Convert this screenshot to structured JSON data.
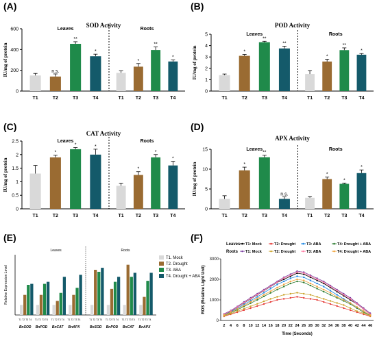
{
  "figure": {
    "colors": {
      "T1": "#d9d9d9",
      "T2": "#9a6b32",
      "T3": "#1f8a4a",
      "T4": "#145a6a"
    },
    "panels_text": {
      "leaves": "Leaves",
      "roots": "Roots"
    }
  },
  "chart_data": [
    {
      "panel": "(A)",
      "title": "SOD Activity",
      "type": "bar",
      "ylabel": "IU/mg of protein",
      "ylim": [
        0,
        600
      ],
      "yticks": [
        0,
        200,
        400,
        600
      ],
      "groups": [
        "Leaves",
        "Roots"
      ],
      "categories": [
        "T1",
        "T2",
        "T3",
        "T4"
      ],
      "series": [
        {
          "name": "Leaves",
          "values": [
            150,
            140,
            455,
            335
          ],
          "errors": [
            20,
            25,
            20,
            20
          ],
          "labels": [
            "",
            "n.s.",
            "**",
            "*"
          ]
        },
        {
          "name": "Roots",
          "values": [
            175,
            235,
            395,
            285
          ],
          "errors": [
            20,
            30,
            30,
            15
          ],
          "labels": [
            "",
            "*",
            "**",
            "*"
          ]
        }
      ]
    },
    {
      "panel": "(B)",
      "title": "POD Activity",
      "type": "bar",
      "ylabel": "IU/mg of protein",
      "ylim": [
        0,
        5
      ],
      "yticks": [
        0,
        1,
        2,
        3,
        4,
        5
      ],
      "groups": [
        "Leaves",
        "Roots"
      ],
      "categories": [
        "T1",
        "T2",
        "T3",
        "T4"
      ],
      "series": [
        {
          "name": "Leaves",
          "values": [
            1.4,
            3.1,
            4.3,
            3.75
          ],
          "errors": [
            0.1,
            0.12,
            0.08,
            0.2
          ],
          "labels": [
            "",
            "*",
            "**",
            "**"
          ]
        },
        {
          "name": "Roots",
          "values": [
            1.5,
            2.6,
            3.6,
            3.2
          ],
          "errors": [
            0.3,
            0.2,
            0.2,
            0.1
          ],
          "labels": [
            "",
            "*",
            "**",
            "*"
          ]
        }
      ]
    },
    {
      "panel": "(C)",
      "title": "CAT Activity",
      "type": "bar",
      "ylabel": "IU/mg of protein",
      "ylim": [
        0,
        2.5
      ],
      "yticks": [
        0.0,
        0.5,
        1.0,
        1.5,
        2.0,
        2.5
      ],
      "groups": [
        "Leaves",
        "Roots"
      ],
      "categories": [
        "T1",
        "T2",
        "T3",
        "T4"
      ],
      "series": [
        {
          "name": "Leaves",
          "values": [
            1.3,
            1.9,
            2.2,
            2.0
          ],
          "errors": [
            0.3,
            0.08,
            0.06,
            0.2
          ],
          "labels": [
            "",
            "*",
            "*",
            "*"
          ]
        },
        {
          "name": "Roots",
          "values": [
            0.85,
            1.25,
            1.9,
            1.6
          ],
          "errors": [
            0.1,
            0.12,
            0.1,
            0.15
          ],
          "labels": [
            "",
            "*",
            "*",
            "*"
          ]
        }
      ]
    },
    {
      "panel": "(D)",
      "title": "APX Activity",
      "type": "bar",
      "ylabel": "IU/mg of protein",
      "ylim": [
        0,
        15
      ],
      "yticks": [
        0,
        5,
        10,
        15
      ],
      "groups": [
        "Leaves",
        "Roots"
      ],
      "categories": [
        "T1",
        "T2",
        "T3",
        "T4"
      ],
      "series": [
        {
          "name": "Leaves",
          "values": [
            2.5,
            9.7,
            13.0,
            2.5
          ],
          "errors": [
            0.8,
            0.8,
            0.5,
            0.5
          ],
          "labels": [
            "",
            "*",
            "**",
            "n.s."
          ]
        },
        {
          "name": "Roots",
          "values": [
            2.8,
            7.5,
            6.3,
            9.0
          ],
          "errors": [
            0.3,
            0.5,
            0.2,
            0.8
          ],
          "labels": [
            "",
            "*",
            "*",
            "*"
          ]
        }
      ]
    },
    {
      "panel": "(E)",
      "type": "bar",
      "ylabel": "Relative Expression Level",
      "ylim": [
        0,
        6
      ],
      "groups": [
        "Leaves",
        "Roots"
      ],
      "genes": [
        "BnSOD",
        "BnPOD",
        "BnCAT",
        "BnAPX"
      ],
      "categories": [
        "T1",
        "T2",
        "T3",
        "T4"
      ],
      "legend": [
        "T1. Mock",
        "T2. Drought",
        "T3. ABA",
        "T4. Drought + ABA"
      ],
      "series": [
        {
          "name": "Leaves",
          "values": [
            [
              1.0,
              2.0,
              3.0,
              3.1
            ],
            [
              1.0,
              2.0,
              3.1,
              3.3
            ],
            [
              1.0,
              1.4,
              2.2,
              3.8
            ],
            [
              1.0,
              2.0,
              2.7,
              4.0
            ]
          ]
        },
        {
          "name": "Roots",
          "values": [
            [
              1.0,
              4.5,
              4.3,
              4.7
            ],
            [
              1.0,
              2.6,
              3.3,
              3.8
            ],
            [
              1.0,
              5.0,
              3.8,
              4.2
            ],
            [
              1.0,
              1.8,
              3.4,
              4.2
            ]
          ]
        }
      ]
    },
    {
      "panel": "(F)",
      "type": "line",
      "ylabel": "ROS (Relative Light Unit)",
      "xlabel": "Time (Seconds)",
      "ylim": [
        0,
        3000
      ],
      "yticks": [
        0,
        1000,
        2000,
        3000
      ],
      "x": [
        2,
        4,
        6,
        8,
        10,
        12,
        14,
        16,
        18,
        20,
        22,
        24,
        26,
        28,
        30,
        32,
        34,
        36,
        38,
        40,
        42,
        44,
        46
      ],
      "legend_rows": [
        "Leaves",
        "Roots"
      ],
      "series": [
        {
          "name": "T1: Mock",
          "group": "Leaves",
          "color": "#000000",
          "marker": "square",
          "values": [
            300,
            450,
            650,
            850,
            1050,
            1250,
            1450,
            1650,
            1850,
            2000,
            2150,
            2300,
            2250,
            2100,
            1950,
            1800,
            1600,
            1400,
            1200,
            1000,
            800,
            550,
            300
          ]
        },
        {
          "name": "T2: Drought",
          "group": "Leaves",
          "color": "#e53935",
          "marker": "square",
          "values": [
            200,
            300,
            400,
            500,
            600,
            700,
            800,
            900,
            1000,
            1050,
            1100,
            1150,
            1100,
            1050,
            1000,
            900,
            800,
            700,
            600,
            500,
            400,
            300,
            200
          ]
        },
        {
          "name": "T3: ABA",
          "group": "Leaves",
          "color": "#1e88e5",
          "marker": "diamond",
          "values": [
            280,
            420,
            600,
            780,
            960,
            1150,
            1350,
            1550,
            1750,
            1900,
            2050,
            2150,
            2100,
            1950,
            1800,
            1650,
            1450,
            1250,
            1050,
            850,
            650,
            450,
            250
          ]
        },
        {
          "name": "T4: Drought + ABA",
          "group": "Leaves",
          "color": "#2e7d32",
          "marker": "circle",
          "values": [
            250,
            370,
            520,
            680,
            840,
            1000,
            1170,
            1340,
            1500,
            1650,
            1800,
            1900,
            1850,
            1700,
            1550,
            1400,
            1250,
            1100,
            950,
            800,
            600,
            400,
            250
          ]
        },
        {
          "name": "T1: Mock",
          "group": "Roots",
          "color": "#7b3fa0",
          "marker": "circle",
          "values": [
            320,
            480,
            680,
            900,
            1100,
            1300,
            1500,
            1700,
            1900,
            2100,
            2250,
            2400,
            2350,
            2200,
            2050,
            1900,
            1700,
            1500,
            1300,
            1100,
            850,
            600,
            350
          ]
        },
        {
          "name": "T2: Drought",
          "group": "Roots",
          "color": "#c9a227",
          "marker": "circle",
          "values": [
            220,
            330,
            450,
            570,
            690,
            810,
            930,
            1050,
            1150,
            1250,
            1300,
            1350,
            1300,
            1250,
            1150,
            1050,
            950,
            850,
            750,
            600,
            450,
            350,
            220
          ]
        },
        {
          "name": "T3: ABA",
          "group": "Roots",
          "color": "#ff7aa2",
          "marker": "circle",
          "values": [
            300,
            460,
            650,
            860,
            1060,
            1260,
            1460,
            1660,
            1860,
            2060,
            2200,
            2350,
            2300,
            2150,
            2000,
            1850,
            1650,
            1450,
            1250,
            1050,
            800,
            550,
            300
          ]
        },
        {
          "name": "T4: Drought + ABA",
          "group": "Roots",
          "color": "#f2a33a",
          "marker": "circle",
          "values": [
            260,
            400,
            560,
            730,
            900,
            1070,
            1250,
            1420,
            1600,
            1750,
            1900,
            2000,
            1950,
            1800,
            1650,
            1500,
            1350,
            1150,
            1000,
            850,
            650,
            450,
            260
          ]
        }
      ]
    }
  ]
}
